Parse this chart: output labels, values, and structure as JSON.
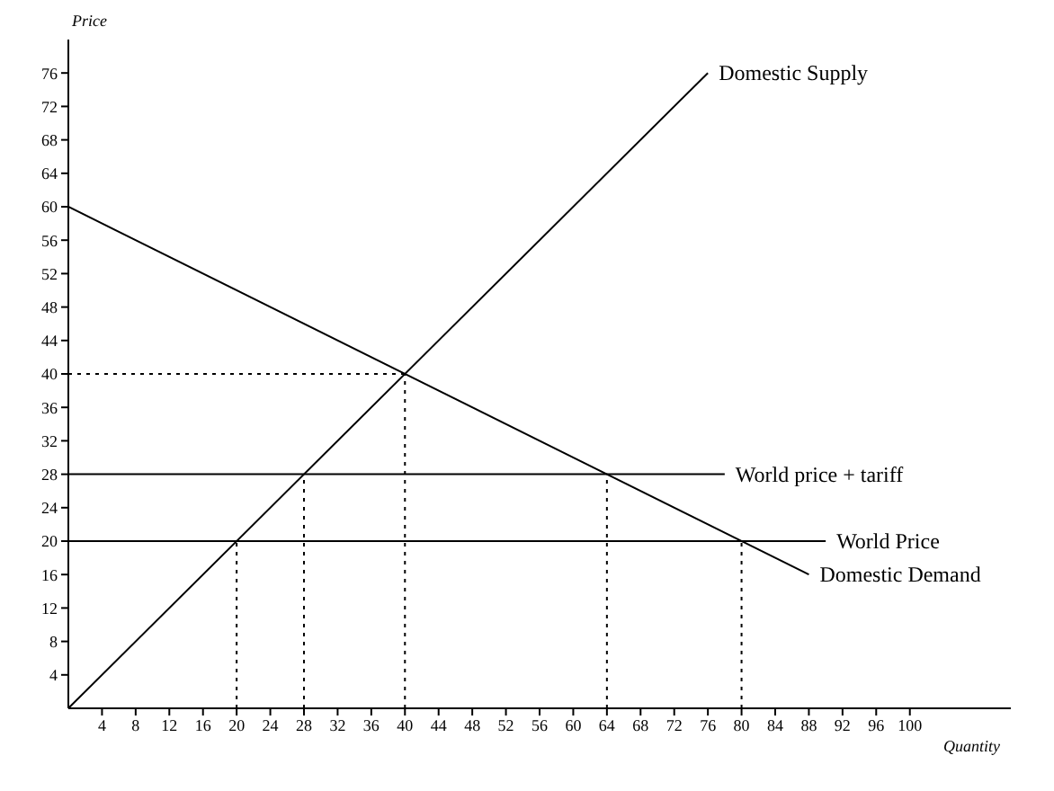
{
  "chart_data": {
    "type": "line",
    "xlabel": "Quantity",
    "ylabel": "Price",
    "xlim": [
      0,
      112
    ],
    "ylim": [
      0,
      80
    ],
    "xticks": [
      4,
      8,
      12,
      16,
      20,
      24,
      28,
      32,
      36,
      40,
      44,
      48,
      52,
      56,
      60,
      64,
      68,
      72,
      76,
      80,
      84,
      88,
      92,
      96,
      100
    ],
    "yticks": [
      4,
      8,
      12,
      16,
      20,
      24,
      28,
      32,
      36,
      40,
      44,
      48,
      52,
      56,
      60,
      64,
      68,
      72,
      76
    ],
    "grid": false,
    "legend": false,
    "marker": "none",
    "series": [
      {
        "name": "Domestic Supply",
        "color": "#000000",
        "x": [
          0,
          76
        ],
        "values": [
          0,
          76
        ],
        "line_style": "solid"
      },
      {
        "name": "Domestic Demand",
        "color": "#000000",
        "x": [
          0,
          88
        ],
        "values": [
          60,
          16
        ],
        "line_style": "solid"
      },
      {
        "name": "World price + tariff",
        "color": "#000000",
        "x": [
          0,
          78
        ],
        "values": [
          28,
          28
        ],
        "line_style": "solid"
      },
      {
        "name": "World Price",
        "color": "#000000",
        "x": [
          0,
          90
        ],
        "values": [
          20,
          20
        ],
        "line_style": "solid"
      },
      {
        "color": "#000000",
        "x": [
          0,
          40
        ],
        "values": [
          40,
          40
        ],
        "line_style": "dotted"
      },
      {
        "color": "#000000",
        "x": [
          20,
          20
        ],
        "values": [
          0,
          20
        ],
        "line_style": "dotted"
      },
      {
        "color": "#000000",
        "x": [
          28,
          28
        ],
        "values": [
          0,
          28
        ],
        "line_style": "dotted"
      },
      {
        "color": "#000000",
        "x": [
          40,
          40
        ],
        "values": [
          0,
          40
        ],
        "line_style": "dotted"
      },
      {
        "color": "#000000",
        "x": [
          64,
          64
        ],
        "values": [
          0,
          28
        ],
        "line_style": "dotted"
      },
      {
        "color": "#000000",
        "x": [
          80,
          80
        ],
        "values": [
          0,
          20
        ],
        "line_style": "dotted"
      }
    ]
  }
}
